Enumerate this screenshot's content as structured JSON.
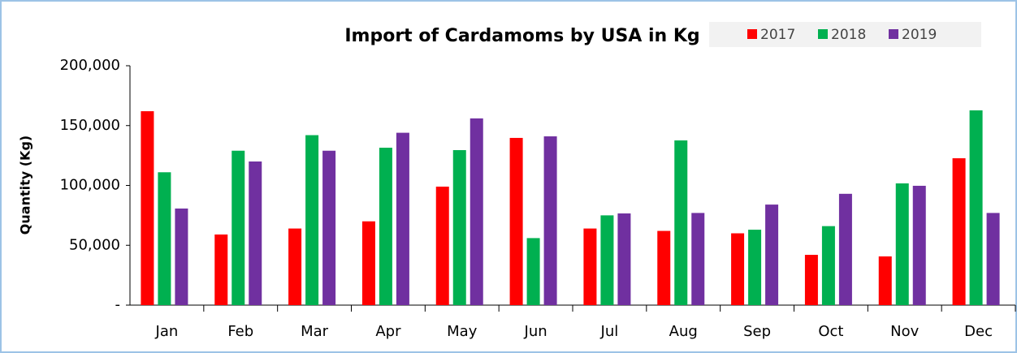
{
  "chart_data": {
    "type": "bar",
    "title": "Import of Cardamoms by USA in Kg",
    "y_axis_label": "Quantity (Kg)",
    "categories": [
      "Jan",
      "Feb",
      "Mar",
      "Apr",
      "May",
      "Jun",
      "Jul",
      "Aug",
      "Sep",
      "Oct",
      "Nov",
      "Dec"
    ],
    "series": [
      {
        "name": "2017",
        "color": "#ff0000",
        "values": [
          162000,
          59000,
          64000,
          70000,
          99000,
          139700,
          64000,
          62000,
          60000,
          42000,
          40700,
          122700
        ]
      },
      {
        "name": "2018",
        "color": "#00b050",
        "values": [
          111000,
          129000,
          142000,
          131500,
          129500,
          56000,
          75000,
          137600,
          63000,
          66000,
          101700,
          162700
        ]
      },
      {
        "name": "2019",
        "color": "#7030a0",
        "values": [
          80700,
          120000,
          129000,
          144000,
          156000,
          141000,
          76600,
          77000,
          84000,
          93000,
          99700,
          77000
        ]
      }
    ],
    "ylim": [
      0,
      200000
    ],
    "yticks": [
      {
        "value": 0,
        "label": "-"
      },
      {
        "value": 50000,
        "label": "50,000"
      },
      {
        "value": 100000,
        "label": "100,000"
      },
      {
        "value": 150000,
        "label": "150,000"
      },
      {
        "value": 200000,
        "label": "200,000"
      }
    ],
    "legend": "top-right",
    "grid": false
  }
}
